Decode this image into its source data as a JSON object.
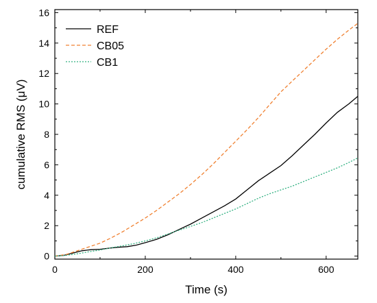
{
  "chart_data": {
    "type": "line",
    "title": "",
    "xlabel": "Time (s)",
    "ylabel": "cumulative RMS (μV)",
    "xlim": [
      0,
      670
    ],
    "ylim": [
      -0.2,
      16.2
    ],
    "x_ticks": [
      0,
      200,
      400,
      600
    ],
    "y_ticks": [
      0,
      2,
      4,
      6,
      8,
      10,
      12,
      14,
      16
    ],
    "grid": false,
    "legend_position": "top-left",
    "series": [
      {
        "name": "REF",
        "color": "#000000",
        "dash": "solid",
        "x": [
          0,
          20,
          40,
          60,
          80,
          100,
          120,
          140,
          160,
          180,
          200,
          225,
          250,
          275,
          300,
          325,
          350,
          375,
          400,
          425,
          450,
          475,
          500,
          525,
          550,
          575,
          600,
          625,
          650,
          670
        ],
        "y": [
          0,
          0.05,
          0.2,
          0.35,
          0.42,
          0.45,
          0.52,
          0.58,
          0.62,
          0.72,
          0.88,
          1.1,
          1.4,
          1.75,
          2.1,
          2.5,
          2.9,
          3.3,
          3.75,
          4.35,
          4.95,
          5.45,
          5.95,
          6.6,
          7.3,
          8.0,
          8.75,
          9.45,
          10.0,
          10.5
        ]
      },
      {
        "name": "CB05",
        "color": "#f08030",
        "dash": "dashed",
        "x": [
          0,
          25,
          50,
          75,
          100,
          125,
          150,
          175,
          200,
          225,
          250,
          275,
          300,
          325,
          350,
          375,
          400,
          425,
          450,
          475,
          500,
          525,
          550,
          575,
          600,
          625,
          650,
          670
        ],
        "y": [
          0,
          0.1,
          0.35,
          0.6,
          0.85,
          1.2,
          1.6,
          2.05,
          2.5,
          3.0,
          3.55,
          4.1,
          4.7,
          5.35,
          6.05,
          6.8,
          7.55,
          8.3,
          9.1,
          9.95,
          10.8,
          11.5,
          12.2,
          12.9,
          13.6,
          14.25,
          14.85,
          15.3
        ]
      },
      {
        "name": "CB1",
        "color": "#30b080",
        "dash": "dotted",
        "x": [
          0,
          25,
          50,
          75,
          100,
          125,
          150,
          175,
          200,
          225,
          250,
          275,
          300,
          325,
          350,
          375,
          400,
          425,
          450,
          475,
          500,
          525,
          550,
          575,
          600,
          625,
          650,
          670
        ],
        "y": [
          0,
          0.05,
          0.15,
          0.28,
          0.4,
          0.55,
          0.68,
          0.82,
          1.0,
          1.2,
          1.45,
          1.7,
          1.95,
          2.2,
          2.5,
          2.8,
          3.1,
          3.45,
          3.8,
          4.1,
          4.35,
          4.6,
          4.9,
          5.2,
          5.5,
          5.8,
          6.15,
          6.45
        ]
      }
    ]
  }
}
